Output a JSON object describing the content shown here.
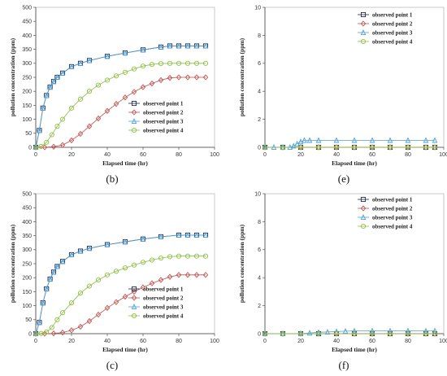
{
  "chart_data": [
    {
      "panel_label": "(b)",
      "type": "scatter",
      "xlabel": "Elapsed time (hr)",
      "ylabel": "pollution concentration (ppm)",
      "xlim": [
        0,
        100
      ],
      "ylim": [
        0,
        500
      ],
      "xticks": [
        0,
        20,
        40,
        60,
        80,
        100
      ],
      "yticks": [
        0,
        50,
        100,
        150,
        200,
        250,
        300,
        350,
        400,
        450,
        500
      ],
      "legend_position": "middle-right",
      "series": [
        {
          "name": "observed point 1",
          "color": "#1f2a44",
          "marker": "square",
          "x": [
            0,
            2,
            4,
            6,
            8,
            10,
            12,
            15,
            20,
            25,
            30,
            40,
            50,
            60,
            70,
            75,
            80,
            85,
            90,
            95
          ],
          "y": [
            0,
            60,
            140,
            185,
            215,
            235,
            250,
            265,
            288,
            300,
            310,
            325,
            337,
            348,
            358,
            362,
            362,
            362,
            362,
            362
          ]
        },
        {
          "name": "observed point 2",
          "color": "#c0504d",
          "marker": "diamond",
          "x": [
            0,
            5,
            10,
            15,
            20,
            25,
            30,
            35,
            40,
            45,
            50,
            55,
            60,
            65,
            70,
            75,
            80,
            85,
            90,
            95
          ],
          "y": [
            0,
            0,
            2,
            8,
            25,
            48,
            75,
            103,
            130,
            155,
            178,
            198,
            215,
            228,
            240,
            248,
            250,
            250,
            250,
            250
          ]
        },
        {
          "name": "observed point 3",
          "color": "#4f9fd9",
          "marker": "triangle",
          "x": [
            0,
            2,
            4,
            6,
            8,
            10,
            12,
            15,
            20,
            25,
            30,
            40,
            50,
            60,
            70,
            75,
            80,
            85,
            90,
            95
          ],
          "y": [
            0,
            60,
            140,
            185,
            215,
            235,
            250,
            265,
            288,
            300,
            310,
            325,
            337,
            348,
            358,
            362,
            362,
            362,
            362,
            362
          ]
        },
        {
          "name": "observed point 4",
          "color": "#8cbf3f",
          "marker": "circle",
          "x": [
            0,
            3,
            6,
            9,
            12,
            15,
            20,
            25,
            30,
            35,
            40,
            45,
            50,
            55,
            60,
            65,
            70,
            75,
            80,
            85,
            90,
            95
          ],
          "y": [
            0,
            3,
            18,
            45,
            75,
            100,
            140,
            172,
            200,
            222,
            240,
            255,
            268,
            280,
            290,
            296,
            299,
            300,
            300,
            300,
            300,
            300
          ]
        }
      ]
    },
    {
      "panel_label": "(e)",
      "type": "scatter",
      "xlabel": "Elapsed time (hr)",
      "ylabel": "pollution concentration (ppm)",
      "xlim": [
        0,
        100
      ],
      "ylim": [
        0,
        10
      ],
      "xticks": [
        0,
        20,
        40,
        60,
        80,
        100
      ],
      "yticks": [
        0,
        2,
        4,
        6,
        8,
        10
      ],
      "legend_position": "top-right",
      "series": [
        {
          "name": "observed point 1",
          "color": "#1f2a44",
          "marker": "square",
          "x": [
            0,
            10,
            20,
            30,
            40,
            50,
            60,
            70,
            80,
            90,
            95
          ],
          "y": [
            0,
            0,
            0,
            0,
            0,
            0,
            0,
            0,
            0,
            0,
            0
          ]
        },
        {
          "name": "observed point 2",
          "color": "#c0504d",
          "marker": "diamond",
          "x": [
            0,
            10,
            20,
            30,
            40,
            50,
            60,
            70,
            80,
            90,
            95
          ],
          "y": [
            0,
            0,
            0,
            0,
            0,
            0,
            0,
            0,
            0,
            0,
            0
          ]
        },
        {
          "name": "observed point 3",
          "color": "#4f9fd9",
          "marker": "triangle",
          "x": [
            0,
            5,
            10,
            14,
            16,
            18,
            20,
            22,
            25,
            30,
            40,
            50,
            60,
            70,
            80,
            90,
            95
          ],
          "y": [
            0,
            0,
            0,
            0,
            0.1,
            0.25,
            0.4,
            0.5,
            0.5,
            0.5,
            0.5,
            0.5,
            0.5,
            0.5,
            0.5,
            0.5,
            0.5
          ]
        },
        {
          "name": "observed point 4",
          "color": "#8cbf3f",
          "marker": "circle",
          "x": [
            0,
            10,
            20,
            30,
            40,
            50,
            60,
            70,
            80,
            90,
            95
          ],
          "y": [
            0,
            0,
            0,
            0,
            0,
            0,
            0,
            0,
            0,
            0,
            0
          ]
        }
      ]
    },
    {
      "panel_label": "(c)",
      "type": "scatter",
      "xlabel": "Elapsed time (hr)",
      "ylabel": "pollution concentration (ppm)",
      "xlim": [
        0,
        100
      ],
      "ylim": [
        0,
        500
      ],
      "xticks": [
        0,
        20,
        40,
        60,
        80,
        100
      ],
      "yticks": [
        0,
        50,
        100,
        150,
        200,
        250,
        300,
        350,
        400,
        450,
        500
      ],
      "legend_position": "middle-right",
      "series": [
        {
          "name": "observed point 1",
          "color": "#1f2a44",
          "marker": "square",
          "x": [
            0,
            2,
            4,
            6,
            8,
            10,
            12,
            15,
            20,
            25,
            30,
            40,
            50,
            60,
            70,
            80,
            85,
            90,
            95
          ],
          "y": [
            0,
            40,
            110,
            160,
            195,
            220,
            240,
            258,
            282,
            295,
            305,
            318,
            328,
            338,
            346,
            352,
            352,
            352,
            352
          ]
        },
        {
          "name": "observed point 2",
          "color": "#c0504d",
          "marker": "diamond",
          "x": [
            0,
            5,
            10,
            15,
            20,
            25,
            30,
            35,
            40,
            45,
            50,
            55,
            60,
            65,
            70,
            75,
            80,
            85,
            90,
            95
          ],
          "y": [
            0,
            0,
            1,
            4,
            12,
            25,
            45,
            68,
            92,
            113,
            132,
            150,
            165,
            180,
            192,
            203,
            210,
            210,
            210,
            210
          ]
        },
        {
          "name": "observed point 3",
          "color": "#4f9fd9",
          "marker": "triangle",
          "x": [
            0,
            2,
            4,
            6,
            8,
            10,
            12,
            15,
            20,
            25,
            30,
            40,
            50,
            60,
            70,
            80,
            85,
            90,
            95
          ],
          "y": [
            0,
            40,
            110,
            160,
            195,
            220,
            240,
            258,
            282,
            295,
            305,
            318,
            328,
            338,
            346,
            352,
            352,
            352,
            352
          ]
        },
        {
          "name": "observed point 4",
          "color": "#8cbf3f",
          "marker": "circle",
          "x": [
            0,
            3,
            6,
            9,
            12,
            15,
            20,
            25,
            30,
            35,
            40,
            45,
            50,
            55,
            60,
            65,
            70,
            75,
            80,
            85,
            90,
            95
          ],
          "y": [
            0,
            1,
            6,
            22,
            50,
            75,
            110,
            145,
            170,
            192,
            210,
            223,
            235,
            245,
            255,
            263,
            270,
            275,
            277,
            277,
            277,
            277
          ]
        }
      ]
    },
    {
      "panel_label": "(f)",
      "type": "scatter",
      "xlabel": "Elapsed time (hr)",
      "ylabel": "pollution concentration (ppm)",
      "xlim": [
        0,
        100
      ],
      "ylim": [
        0,
        10
      ],
      "xticks": [
        0,
        20,
        40,
        60,
        80,
        100
      ],
      "yticks": [
        0,
        2,
        4,
        6,
        8,
        10
      ],
      "legend_position": "top-right",
      "series": [
        {
          "name": "observed point 1",
          "color": "#1f2a44",
          "marker": "square",
          "x": [
            0,
            10,
            20,
            30,
            40,
            50,
            60,
            70,
            80,
            90,
            95
          ],
          "y": [
            0,
            0,
            0,
            0,
            0,
            0,
            0,
            0,
            0,
            0,
            0
          ]
        },
        {
          "name": "observed point 2",
          "color": "#c0504d",
          "marker": "diamond",
          "x": [
            0,
            10,
            20,
            30,
            40,
            50,
            60,
            70,
            80,
            90,
            95
          ],
          "y": [
            0,
            0,
            0,
            0,
            0,
            0,
            0,
            0,
            0,
            0,
            0
          ]
        },
        {
          "name": "observed point 3",
          "color": "#4f9fd9",
          "marker": "triangle",
          "x": [
            0,
            10,
            20,
            25,
            30,
            35,
            40,
            45,
            50,
            60,
            70,
            80,
            90,
            95
          ],
          "y": [
            0,
            0,
            0,
            0.05,
            0.1,
            0.12,
            0.15,
            0.18,
            0.2,
            0.2,
            0.2,
            0.2,
            0.2,
            0.2
          ]
        },
        {
          "name": "observed point 4",
          "color": "#8cbf3f",
          "marker": "circle",
          "x": [
            0,
            10,
            20,
            30,
            40,
            50,
            60,
            70,
            80,
            90,
            95
          ],
          "y": [
            0,
            0,
            0,
            0,
            0,
            0,
            0,
            0,
            0,
            0,
            0
          ]
        }
      ]
    }
  ]
}
